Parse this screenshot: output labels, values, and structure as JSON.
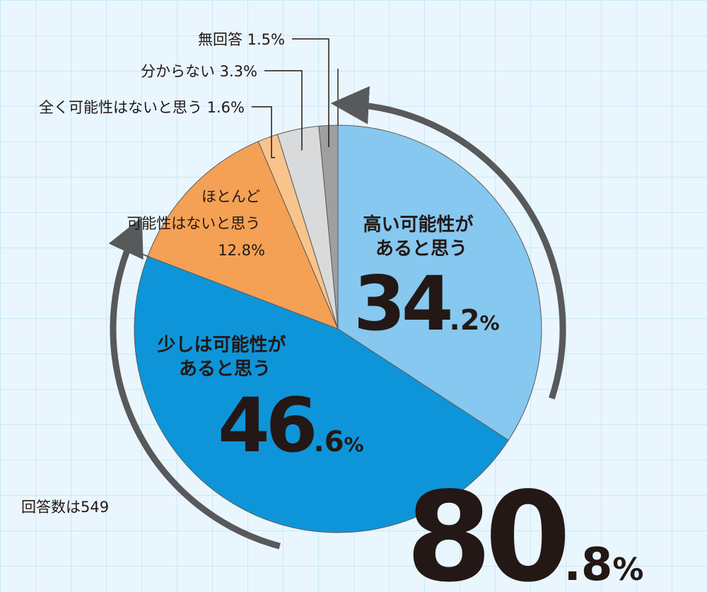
{
  "chart_data": {
    "type": "pie",
    "slices": [
      {
        "label_lines": [
          "高い可能性が",
          "あると思う"
        ],
        "value": 34.2,
        "int": "34",
        "dec": ".2",
        "unit": "%",
        "color": "#86c8ef"
      },
      {
        "label_lines": [
          "少しは可能性が",
          "あると思う"
        ],
        "value": 46.6,
        "int": "46",
        "dec": ".6",
        "unit": "%",
        "color": "#0e95d9"
      },
      {
        "label_lines": [
          "ほとんど",
          "可能性はないと思う",
          "12.8%"
        ],
        "value": 12.8,
        "color": "#f4a155"
      },
      {
        "label": "全く可能性はないと思う 1.6%",
        "value": 1.6,
        "color": "#f9c48c"
      },
      {
        "label": "分からない 3.3%",
        "value": 3.3,
        "color": "#d9dadb"
      },
      {
        "label": "無回答 1.5%",
        "value": 1.5,
        "color": "#9e9fa0"
      }
    ],
    "total": {
      "int": "80",
      "dec": ".8",
      "unit": "%"
    },
    "note": "回答数は549"
  }
}
